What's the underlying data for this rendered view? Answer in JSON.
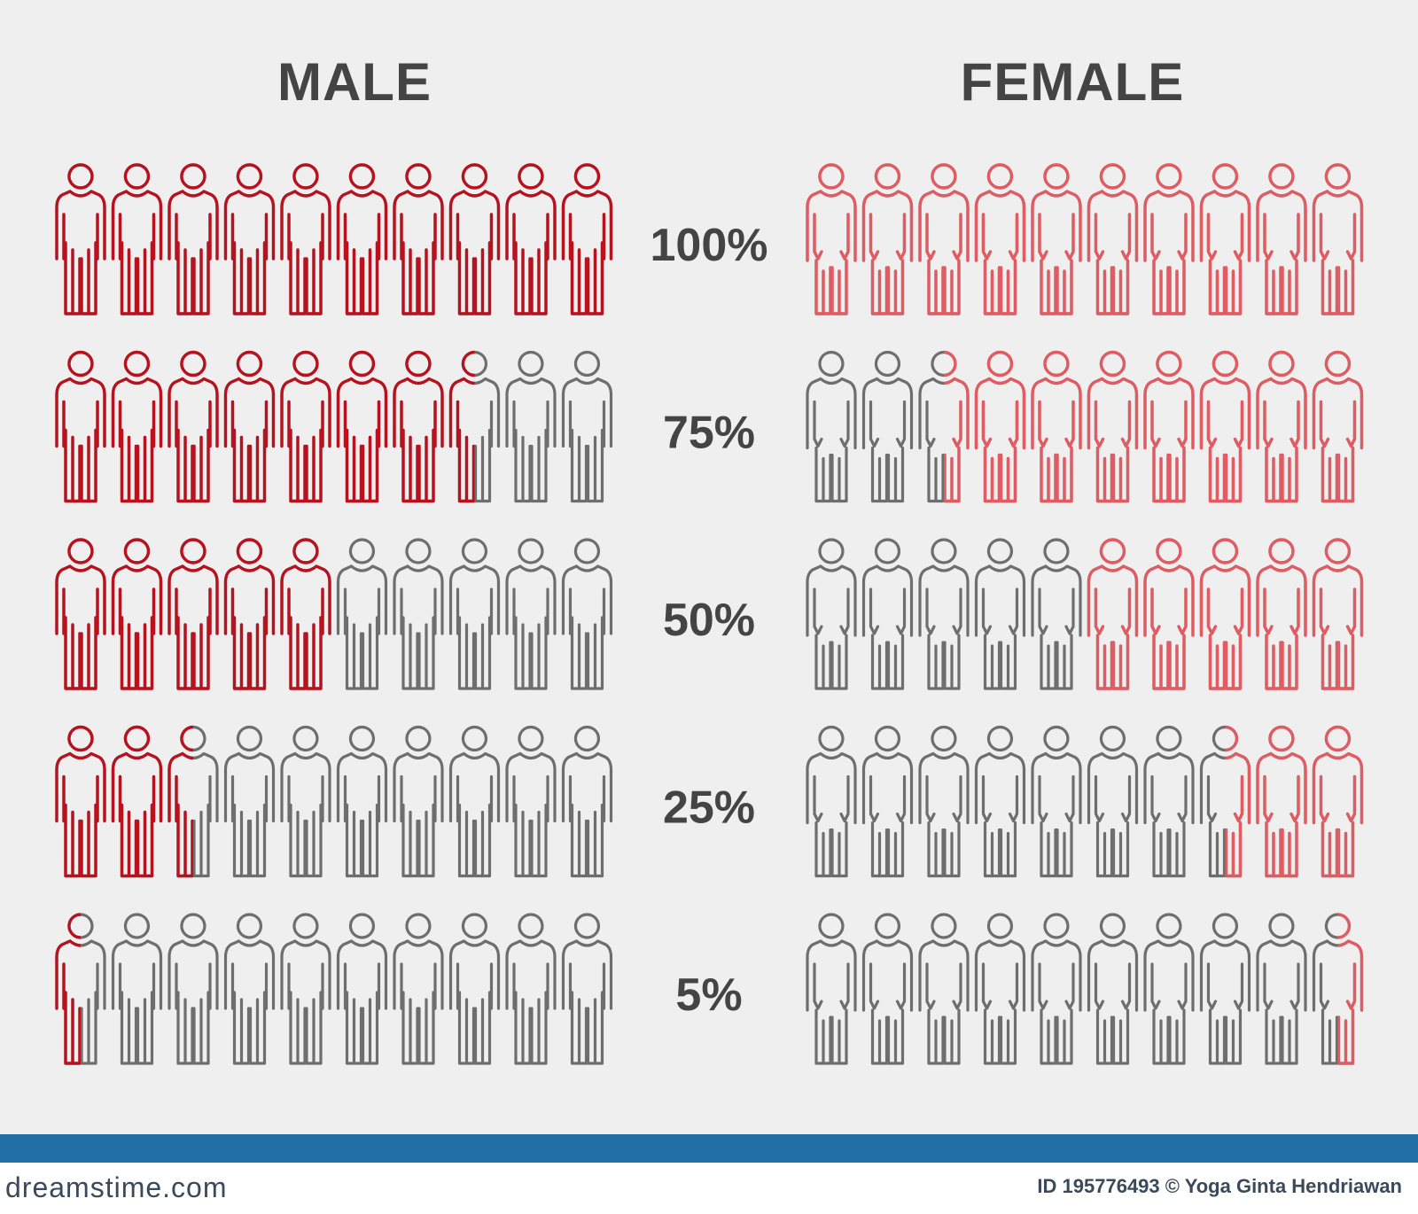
{
  "chart_data": {
    "type": "pictograph",
    "icons_per_row": 10,
    "groups": [
      {
        "name": "MALE",
        "fill_direction": "left-to-right"
      },
      {
        "name": "FEMALE",
        "fill_direction": "right-to-left"
      }
    ],
    "rows": [
      {
        "label": "100%",
        "value": 100
      },
      {
        "label": "75%",
        "value": 75
      },
      {
        "label": "50%",
        "value": 50
      },
      {
        "label": "25%",
        "value": 25
      },
      {
        "label": "5%",
        "value": 5
      }
    ]
  },
  "colors": {
    "background": "#efefef",
    "male_active": "#b8121f",
    "female_active": "#e05c62",
    "inactive": "#6e6e6e",
    "text": "#444444",
    "footer_bar": "#1f6fa6"
  },
  "footer": {
    "logo": "dreamstime.com",
    "credit": "ID 195776493 © Yoga Ginta Hendriawan"
  }
}
